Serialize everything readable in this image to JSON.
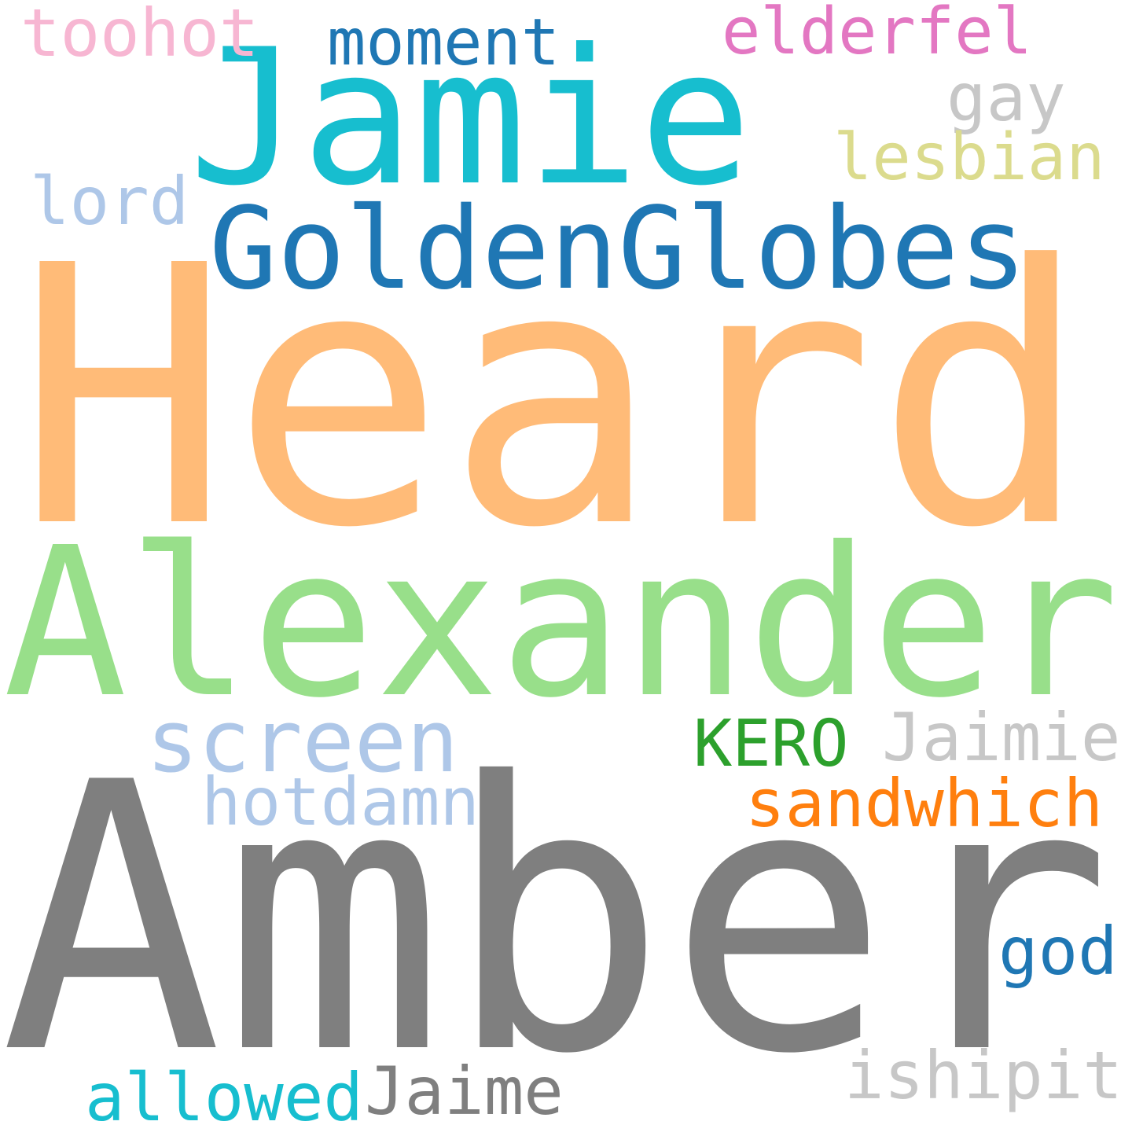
{
  "words": [
    {
      "text": "Heard",
      "color": "#ffbb78"
    },
    {
      "text": "Amber",
      "color": "#7f7f7f"
    },
    {
      "text": "Alexander",
      "color": "#98df8a"
    },
    {
      "text": "Jamie",
      "color": "#17becf"
    },
    {
      "text": "GoldenGlobes",
      "color": "#1f77b4"
    },
    {
      "text": "screen",
      "color": "#aec7e8"
    },
    {
      "text": "toohot",
      "color": "#f7b6d2"
    },
    {
      "text": "moment",
      "color": "#1f77b4"
    },
    {
      "text": "elderfel",
      "color": "#e377c2"
    },
    {
      "text": "gay",
      "color": "#c7c7c7"
    },
    {
      "text": "lesbian",
      "color": "#dbdb8d"
    },
    {
      "text": "lord",
      "color": "#aec7e8"
    },
    {
      "text": "KERO",
      "color": "#2ca02c"
    },
    {
      "text": "Jaimie",
      "color": "#c7c7c7"
    },
    {
      "text": "sandwhich",
      "color": "#ff7f0e"
    },
    {
      "text": "hotdamn",
      "color": "#aec7e8"
    },
    {
      "text": "god",
      "color": "#1f77b4"
    },
    {
      "text": "ishipit",
      "color": "#c7c7c7"
    },
    {
      "text": "allowed",
      "color": "#17becf"
    },
    {
      "text": "Jaime",
      "color": "#7f7f7f"
    }
  ]
}
